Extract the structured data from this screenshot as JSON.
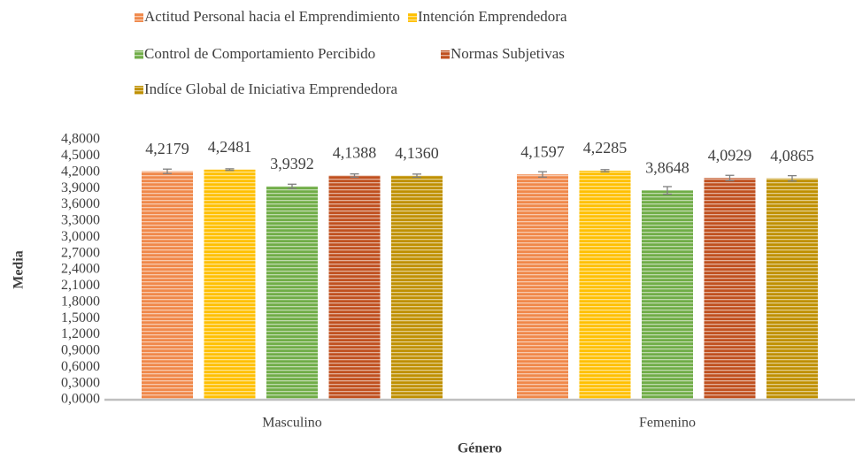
{
  "chart_data": {
    "type": "bar",
    "y_label": "Media",
    "x_label": "Género",
    "categories": [
      "Masculino",
      "Femenino"
    ],
    "series": [
      {
        "name": "Actitud Personal hacia el Emprendimiento",
        "color": "#f0884a",
        "values": [
          4.2179,
          4.1597
        ],
        "value_labels": [
          "4,2179",
          "4,1597"
        ],
        "errors": [
          0.04,
          0.05
        ]
      },
      {
        "name": "Intención Emprendedora",
        "color": "#ffc000",
        "values": [
          4.2481,
          4.2285
        ],
        "value_labels": [
          "4,2481",
          "4,2285"
        ],
        "errors": [
          0.015,
          0.02
        ]
      },
      {
        "name": "Control de Comportamiento Percibido",
        "color": "#70ad47",
        "values": [
          3.9392,
          3.8648
        ],
        "value_labels": [
          "3,9392",
          "3,8648"
        ],
        "errors": [
          0.04,
          0.07
        ]
      },
      {
        "name": "Normas Subjetivas",
        "color": "#c0501f",
        "values": [
          4.1388,
          4.0929
        ],
        "value_labels": [
          "4,1388",
          "4,0929"
        ],
        "errors": [
          0.03,
          0.05
        ]
      },
      {
        "name": "Indíce Global de Iniciativa Emprendedora",
        "color": "#bf9000",
        "values": [
          4.136,
          4.0865
        ],
        "value_labels": [
          "4,1360",
          "4,0865"
        ],
        "errors": [
          0.03,
          0.05
        ]
      }
    ],
    "ylim": [
      0,
      4.8
    ],
    "yticks": [
      {
        "value": 0,
        "label": "0,0000"
      },
      {
        "value": 0.3,
        "label": "0,3000"
      },
      {
        "value": 0.6,
        "label": "0,6000"
      },
      {
        "value": 0.9,
        "label": "0,9000"
      },
      {
        "value": 1.2,
        "label": "1,2000"
      },
      {
        "value": 1.5,
        "label": "1,5000"
      },
      {
        "value": 1.8,
        "label": "1,8000"
      },
      {
        "value": 2.1,
        "label": "2,1000"
      },
      {
        "value": 2.4,
        "label": "2,4000"
      },
      {
        "value": 2.7,
        "label": "2,7000"
      },
      {
        "value": 3.0,
        "label": "3,0000"
      },
      {
        "value": 3.3,
        "label": "3,3000"
      },
      {
        "value": 3.6,
        "label": "3,6000"
      },
      {
        "value": 3.9,
        "label": "3,9000"
      },
      {
        "value": 4.2,
        "label": "4,2000"
      },
      {
        "value": 4.5,
        "label": "4,5000"
      },
      {
        "value": 4.8,
        "label": "4,8000"
      }
    ],
    "grid": false,
    "legend": "top"
  }
}
